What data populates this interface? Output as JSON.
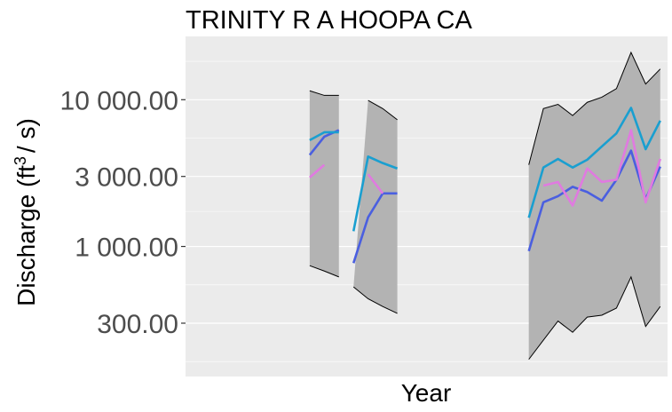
{
  "chart_data": {
    "type": "line",
    "title": "TRINITY R A HOOPA CA",
    "xlabel": "Year",
    "ylabel_main": "Discharge (ft",
    "ylabel_sup": "3",
    "ylabel_tail": "/ s)",
    "yscale": "log",
    "ylim": [
      130,
      27000
    ],
    "yticks": [
      300,
      1000,
      3000,
      10000
    ],
    "ytick_labels": [
      "300.00",
      "1 000.00",
      "3 000.00",
      "10 000.00"
    ],
    "grid": true,
    "x_axis_ticks_shown": false,
    "xlim": [
      0.5,
      33.5
    ],
    "colors": {
      "panel": "#ebebeb",
      "band": "#b3b3b3",
      "gridline": "#ffffff",
      "series_1": "#4a5fe0",
      "series_2": "#e07ae0",
      "series_3": "#1a9fd0"
    },
    "segments": [
      {
        "x": [
          9,
          10,
          11
        ],
        "band_upper": [
          11500,
          10700,
          10700
        ],
        "band_lower": [
          740,
          680,
          620
        ],
        "series": [
          {
            "values": [
              4200,
              5600,
              6200
            ]
          },
          {
            "values": [
              2950,
              3600,
              null
            ]
          },
          {
            "values": [
              5300,
              6000,
              6000
            ]
          }
        ]
      },
      {
        "x": [
          12,
          13,
          14,
          15
        ],
        "band_upper": [
          null,
          9900,
          8700,
          7300
        ],
        "band_lower": [
          530,
          440,
          390,
          350
        ],
        "series": [
          {
            "values": [
              770,
              1580,
              2300,
              2300
            ]
          },
          {
            "values": [
              null,
              3100,
              2300,
              null
            ]
          },
          {
            "values": [
              1270,
              4100,
              3700,
              3400
            ]
          }
        ]
      },
      {
        "x": [
          24,
          25,
          26,
          27,
          28,
          29,
          30,
          31,
          32,
          33
        ],
        "band_upper": [
          3600,
          8700,
          9300,
          7800,
          9600,
          10400,
          11900,
          21000,
          12800,
          16200
        ],
        "band_lower": [
          170,
          230,
          310,
          260,
          330,
          340,
          380,
          620,
          285,
          390
        ],
        "series": [
          {
            "values": [
              930,
              2000,
              2200,
              2550,
              2350,
              2050,
              2850,
              4500,
              2100,
              3500
            ]
          },
          {
            "values": [
              null,
              2600,
              2750,
              1900,
              3400,
              2750,
              2850,
              6200,
              2000,
              3950
            ]
          },
          {
            "values": [
              1570,
              3450,
              3950,
              3450,
              3900,
              4800,
              5900,
              8800,
              4600,
              7200
            ]
          }
        ]
      }
    ]
  }
}
